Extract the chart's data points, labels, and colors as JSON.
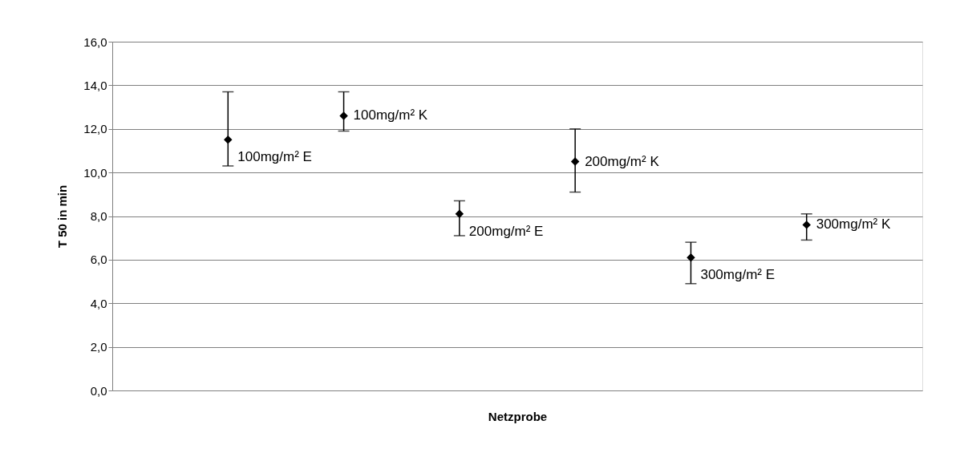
{
  "chart_data": {
    "type": "scatter",
    "ylabel": "T 50 in min",
    "xlabel": "Netzprobe",
    "categories": [
      null,
      null,
      null,
      null,
      null,
      null
    ],
    "series": [
      {
        "color": "#000000",
        "values": [
          11.5,
          12.6,
          8.1,
          10.5,
          6.1,
          7.6
        ],
        "errors": [
          [
            10.3,
            13.7
          ],
          [
            11.9,
            13.7
          ],
          [
            7.1,
            8.7
          ],
          [
            9.1,
            12.0
          ],
          [
            4.9,
            6.8
          ],
          [
            6.9,
            8.1
          ]
        ]
      }
    ],
    "annotations": [
      "100mg/m² E",
      "100mg/m² K",
      "200mg/m² E",
      "200mg/m² K",
      "300mg/m² E",
      "300mg/m² K"
    ],
    "ylim": [
      0,
      16
    ],
    "yticks": [
      {
        "value": 0,
        "label": "0,0"
      },
      {
        "value": 2,
        "label": "2,0"
      },
      {
        "value": 4,
        "label": "4,0"
      },
      {
        "value": 6,
        "label": "6,0"
      },
      {
        "value": 8,
        "label": "8,0"
      },
      {
        "value": 10,
        "label": "10,0"
      },
      {
        "value": 12,
        "label": "12,0"
      },
      {
        "value": 14,
        "label": "14,0"
      },
      {
        "value": 16,
        "label": "16,0"
      }
    ],
    "grid": "y",
    "marker": "diamond"
  }
}
